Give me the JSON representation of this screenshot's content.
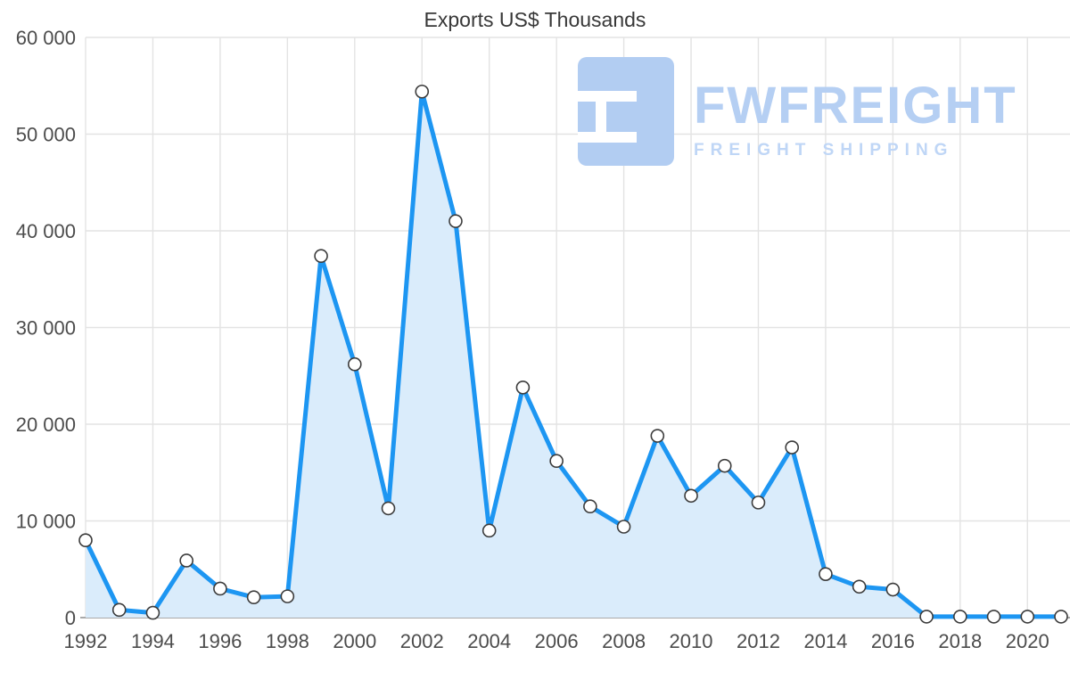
{
  "title": "Exports US$ Thousands",
  "watermark": {
    "name": "FWFREIGHT",
    "subtitle": "FREIGHT SHIPPING"
  },
  "chart_data": {
    "type": "area",
    "title": "Exports US$ Thousands",
    "xlabel": "",
    "ylabel": "",
    "x": [
      1992,
      1993,
      1994,
      1995,
      1996,
      1997,
      1998,
      1999,
      2000,
      2001,
      2002,
      2003,
      2004,
      2005,
      2006,
      2007,
      2008,
      2009,
      2010,
      2011,
      2012,
      2013,
      2014,
      2015,
      2016,
      2017,
      2018,
      2019,
      2020,
      2021
    ],
    "values": [
      8000,
      800,
      500,
      5900,
      3000,
      2100,
      2200,
      37400,
      26200,
      11300,
      54400,
      41000,
      9000,
      23800,
      16200,
      11500,
      9400,
      18800,
      12600,
      15700,
      11900,
      17600,
      4500,
      3200,
      2900,
      100,
      100,
      100,
      100,
      100
    ],
    "ylim": [
      0,
      60000
    ],
    "y_ticks": [
      0,
      10000,
      20000,
      30000,
      40000,
      50000,
      60000
    ],
    "y_tick_labels": [
      "0",
      "10 000",
      "20 000",
      "30 000",
      "40 000",
      "50 000",
      "60 000"
    ],
    "x_tick_labels": [
      "1992",
      "1994",
      "1996",
      "1998",
      "2000",
      "2002",
      "2004",
      "2006",
      "2008",
      "2010",
      "2012",
      "2014",
      "2016",
      "2018",
      "2020"
    ],
    "grid": true,
    "legend": "none",
    "colors": {
      "line": "#1d96f2",
      "fill": "#daecfb",
      "marker_fill": "#ffffff",
      "marker_stroke": "#3c3c3c",
      "grid": "#e3e3e3",
      "axis": "#a9a9a9",
      "axis_text": "#4c4c4c",
      "watermark": "#b5cff3"
    }
  }
}
